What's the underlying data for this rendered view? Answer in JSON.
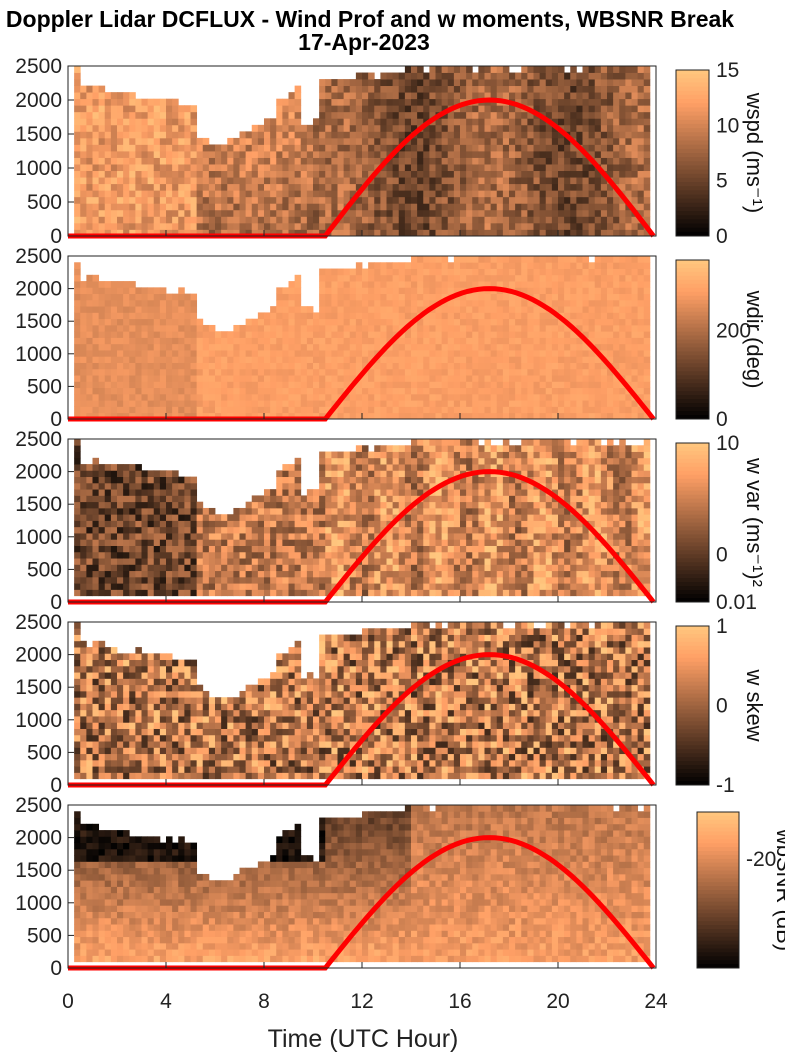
{
  "title_line1": "Doppler Lidar DCFLUX - Wind Prof and w moments, WBSNR Break",
  "title_line2": "17-Apr-2023",
  "chart_data": [
    {
      "type": "heatmap",
      "colorbar_label": "wspd (ms⁻¹)",
      "colorbar_ticks": [
        "15",
        "10",
        "5",
        "0"
      ],
      "colorbar_tick_values": [
        15,
        10,
        5,
        0
      ],
      "clim": [
        0,
        15
      ],
      "colormap": "copper",
      "y_ticks": [
        "2500",
        "2000",
        "1500",
        "1000",
        "500",
        "0"
      ],
      "ylim": [
        0,
        2500
      ],
      "xlim": [
        0,
        24
      ]
    },
    {
      "type": "heatmap",
      "colorbar_label": "wdir (deg)",
      "colorbar_ticks": [
        "200",
        "0"
      ],
      "colorbar_tick_values": [
        200,
        0
      ],
      "clim": [
        0,
        360
      ],
      "colormap": "copper",
      "y_ticks": [
        "2500",
        "2000",
        "1500",
        "1000",
        "500",
        "0"
      ],
      "ylim": [
        0,
        2500
      ],
      "xlim": [
        0,
        24
      ]
    },
    {
      "type": "heatmap",
      "colorbar_label": "w var (ms⁻¹)²",
      "colorbar_ticks": [
        "10",
        "0",
        "0.01"
      ],
      "colorbar_tick_positions": [
        0,
        0.7,
        1
      ],
      "scale": "log",
      "colormap": "copper",
      "y_ticks": [
        "2500",
        "2000",
        "1500",
        "1000",
        "500",
        "0"
      ],
      "ylim": [
        0,
        2500
      ],
      "xlim": [
        0,
        24
      ]
    },
    {
      "type": "heatmap",
      "colorbar_label": "w skew",
      "colorbar_ticks": [
        "1",
        "0",
        "-1"
      ],
      "colorbar_tick_values": [
        1,
        0,
        -1
      ],
      "clim": [
        -1,
        1
      ],
      "colormap": "copper",
      "y_ticks": [
        "2500",
        "2000",
        "1500",
        "1000",
        "500",
        "0"
      ],
      "ylim": [
        0,
        2500
      ],
      "xlim": [
        0,
        24
      ]
    },
    {
      "type": "heatmap",
      "colorbar_label": "wbSNR (dB)",
      "colorbar_ticks": [
        "-20"
      ],
      "colorbar_tick_positions": [
        0.3
      ],
      "colormap": "copper",
      "y_ticks": [
        "2500",
        "2000",
        "1500",
        "1000",
        "500",
        "0"
      ],
      "ylim": [
        0,
        2500
      ],
      "xlim": [
        0,
        24
      ],
      "x_ticks": [
        "0",
        "4",
        "8",
        "12",
        "16",
        "20",
        "24"
      ],
      "x_tick_values": [
        0,
        4,
        8,
        12,
        16,
        20,
        24
      ],
      "xlabel": "Time (UTC Hour)"
    }
  ],
  "overlay_curve": {
    "color": "#ff0000",
    "night_level_m": 0,
    "sunrise_hour": 10.5,
    "sunset_hour": 23.9,
    "peak_m": 2000
  }
}
